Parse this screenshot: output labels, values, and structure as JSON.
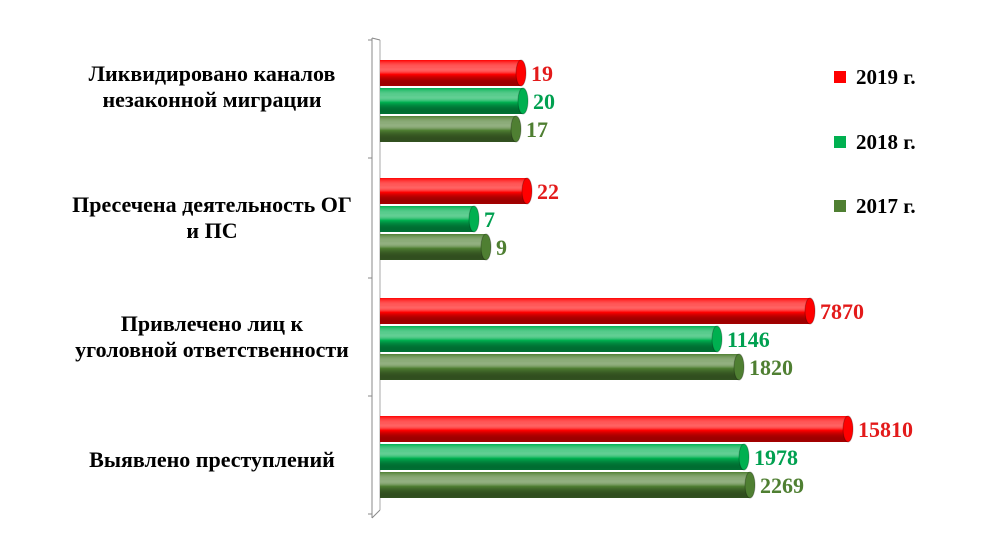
{
  "chart_data": {
    "type": "bar",
    "orientation": "horizontal",
    "categories": [
      [
        "Ликвидировано каналов",
        "незаконной миграции"
      ],
      [
        "Пресечена деятельность  ОГ",
        "и ПС"
      ],
      [
        "Привлечено лиц к",
        "уголовной ответственности"
      ],
      [
        "Выявлено преступлений"
      ]
    ],
    "series": [
      {
        "name": "2019 г.",
        "color": "#ff0000",
        "label_color": "#e31a1a",
        "values": [
          19,
          22,
          7870,
          15810
        ]
      },
      {
        "name": "2018 г.",
        "color": "#00b050",
        "label_color": "#00a050",
        "values": [
          20,
          7,
          1146,
          1978
        ]
      },
      {
        "name": "2017 г.",
        "color": "#4f7f32",
        "label_color": "#4f7f32",
        "values": [
          17,
          9,
          1820,
          2269
        ]
      }
    ],
    "legend_position": "right",
    "grid": false,
    "scale_note": "bars are not drawn to a common linear scale in the original"
  }
}
